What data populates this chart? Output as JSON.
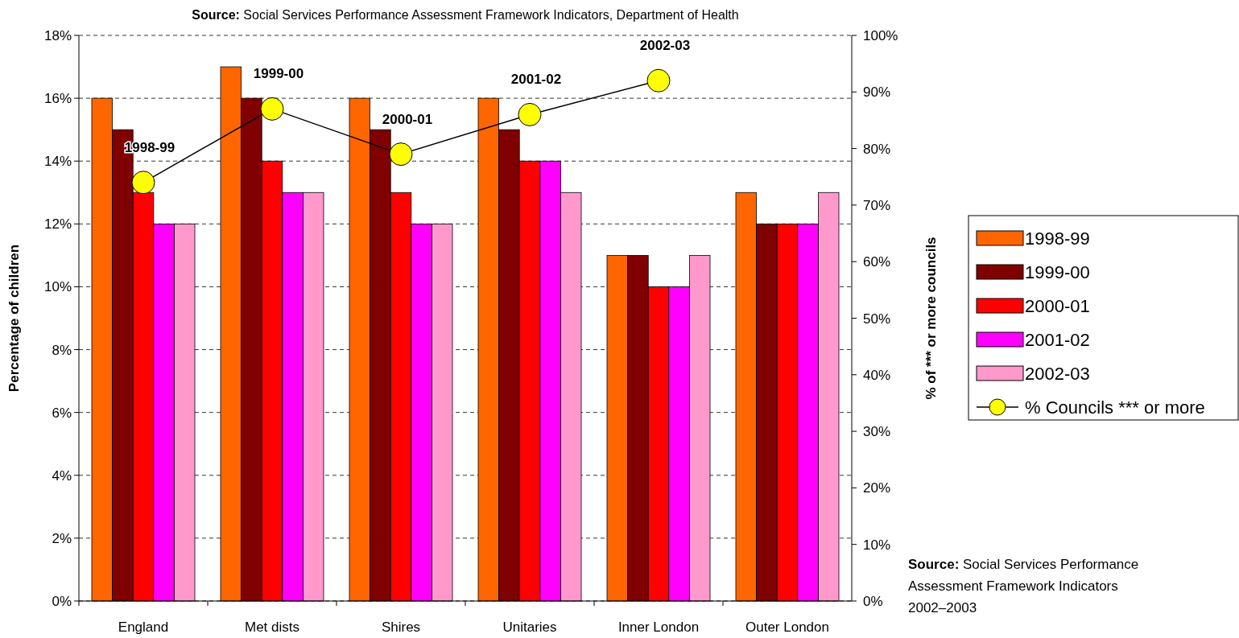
{
  "chart_data": {
    "type": "bar",
    "title": "Source: Social Services Performance Assessment Framework Indicators, Department of Health",
    "ylabel": "Percentage of children",
    "y2label": "% of *** or more councils",
    "categories": [
      "England",
      "Met dists",
      "Shires",
      "Unitaries",
      "Inner London",
      "Outer London"
    ],
    "series": [
      {
        "name": "1998-99",
        "color": "#ff6600",
        "values": [
          16,
          17,
          16,
          16,
          11,
          13
        ]
      },
      {
        "name": "1999-00",
        "color": "#800000",
        "values": [
          15,
          16,
          15,
          15,
          11,
          12
        ]
      },
      {
        "name": "2000-01",
        "color": "#ff0000",
        "values": [
          13,
          14,
          13,
          14,
          10,
          12
        ]
      },
      {
        "name": "2001-02",
        "color": "#ff00ff",
        "values": [
          12,
          13,
          12,
          14,
          10,
          12
        ]
      },
      {
        "name": "2002-03",
        "color": "#ff99cc",
        "values": [
          12,
          13,
          12,
          13,
          11,
          13
        ]
      },
      {
        "name": "% Councils *** or more",
        "type": "line",
        "axis": "y2",
        "color": "#000000",
        "marker": "circle",
        "values": [
          74,
          87,
          79,
          86,
          92,
          null
        ],
        "value_labels": [
          "1998-99",
          "1999-00",
          "2000-01",
          "2001-02",
          "2002-03",
          null
        ]
      }
    ],
    "ylim": [
      0,
      18
    ],
    "yticks": [
      {
        "value": 0,
        "label": "0%"
      },
      {
        "value": 2,
        "label": "2%"
      },
      {
        "value": 4,
        "label": "4%"
      },
      {
        "value": 6,
        "label": "6%"
      },
      {
        "value": 8,
        "label": "8%"
      },
      {
        "value": 10,
        "label": "10%"
      },
      {
        "value": 12,
        "label": "12%"
      },
      {
        "value": 14,
        "label": "14%"
      },
      {
        "value": 16,
        "label": "16%"
      },
      {
        "value": 18,
        "label": "18%"
      }
    ],
    "y2lim": [
      0,
      100
    ],
    "y2ticks": [
      {
        "value": 0,
        "label": "0%"
      },
      {
        "value": 10,
        "label": "10%"
      },
      {
        "value": 20,
        "label": "20%"
      },
      {
        "value": 30,
        "label": "30%"
      },
      {
        "value": 40,
        "label": "40%"
      },
      {
        "value": 50,
        "label": "50%"
      },
      {
        "value": 60,
        "label": "60%"
      },
      {
        "value": 70,
        "label": "70%"
      },
      {
        "value": 80,
        "label": "80%"
      },
      {
        "value": 90,
        "label": "90%"
      },
      {
        "value": 100,
        "label": "100%"
      }
    ],
    "grid": "y",
    "legend": "right",
    "annotations": [
      "Source: Social Services Performance Assessment Framework Indicators 2002–2003"
    ]
  }
}
